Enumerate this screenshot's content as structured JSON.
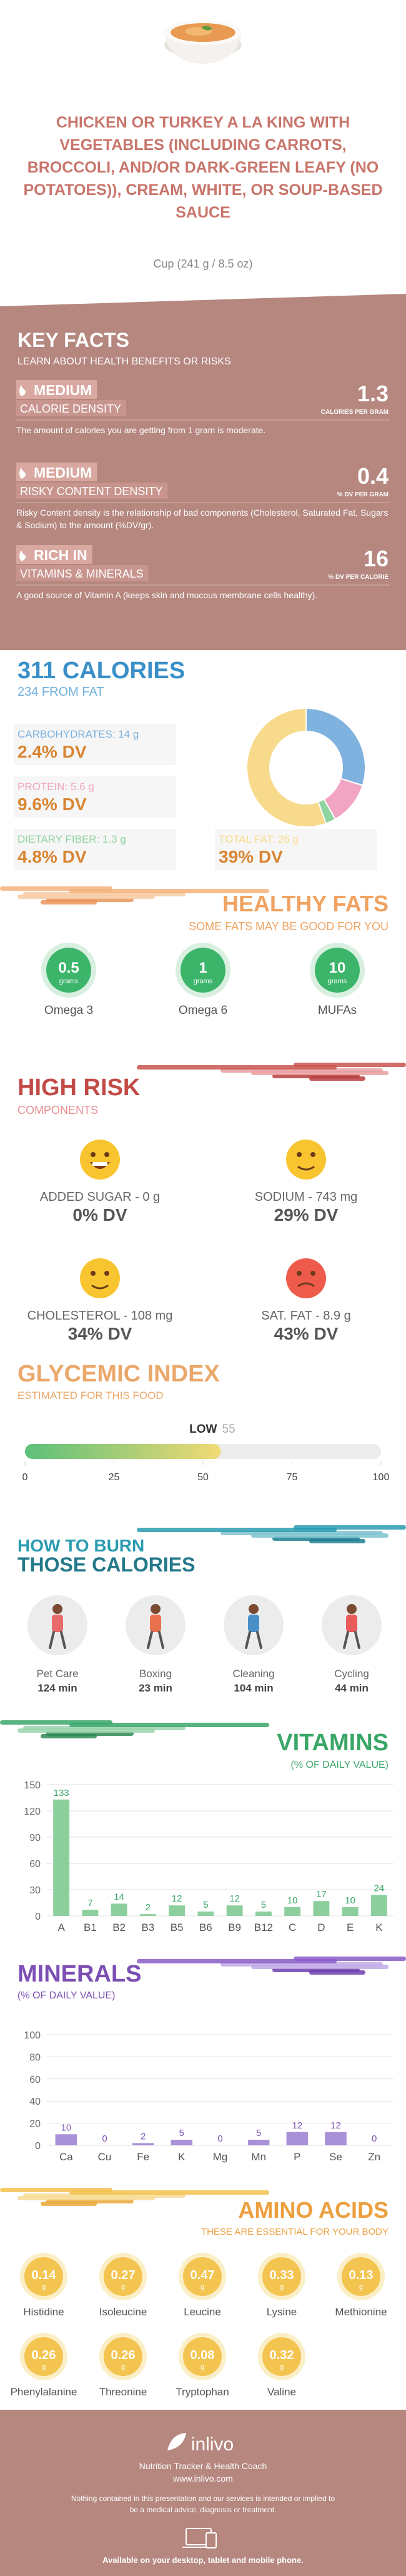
{
  "header": {
    "title": "CHICKEN OR TURKEY A LA KING WITH VEGETABLES (INCLUDING CARROTS, BROCCOLI, AND/OR DARK-GREEN LEAFY (NO POTATOES)), CREAM, WHITE, OR SOUP-BASED SAUCE",
    "serving": "Cup (241 g / 8.5 oz)"
  },
  "key_facts": {
    "title": "KEY FACTS",
    "subtitle": "LEARN ABOUT HEALTH BENEFITS OR RISKS",
    "items": [
      {
        "level": "MEDIUM",
        "label": "CALORIE DENSITY",
        "value": 1.3,
        "unit": "CALORIES PER GRAM",
        "description": "The amount of calories you are getting from 1 gram is moderate."
      },
      {
        "level": "MEDIUM",
        "label": "RISKY CONTENT DENSITY",
        "value": 0.4,
        "unit": "% DV PER GRAM",
        "description": "Risky Content density is the relationship of bad components (Cholesterol, Saturated Fat, Sugars & Sodium) to the amount (%DV/gr)."
      },
      {
        "level": "RICH IN",
        "label": "VITAMINS & MINERALS",
        "value": 16,
        "unit": "% DV PER CALORIE",
        "description": "A good source of Vitamin A (keeps skin and mucous membrane cells healthy)."
      }
    ]
  },
  "calories": {
    "title": "311 CALORIES",
    "subtitle": "234 FROM FAT",
    "nutrients": [
      {
        "label": "CARBOHYDRATES: 14 g",
        "value": 14,
        "dv": "2.4% DV",
        "color": "#7fb2de"
      },
      {
        "label": "PROTEIN: 5.6 g",
        "value": 5.6,
        "dv": "9.6% DV",
        "color": "#f2a5c3"
      },
      {
        "label": "DIETARY FIBER: 1.3 g",
        "value": 1.3,
        "dv": "4.8% DV",
        "color": "#8fd3a0"
      },
      {
        "label": "TOTAL FAT: 26 g",
        "value": 26,
        "dv": "39% DV",
        "color": "#f8da8c"
      }
    ]
  },
  "healthy_fats": {
    "title": "HEALTHY FATS",
    "subtitle": "SOME FATS MAY BE GOOD FOR YOU",
    "items": [
      {
        "name": "Omega 3",
        "value": 0.5,
        "unit": "grams"
      },
      {
        "name": "Omega 6",
        "value": 1,
        "unit": "grams"
      },
      {
        "name": "MUFAs",
        "value": 10,
        "unit": "grams"
      }
    ]
  },
  "high_risk": {
    "title": "HIGH RISK",
    "subtitle": "COMPONENTS",
    "items": [
      {
        "label": "ADDED SUGAR - 0 g",
        "dv": "0% DV",
        "mood": "happy"
      },
      {
        "label": "SODIUM - 743 mg",
        "dv": "29% DV",
        "mood": "smile"
      },
      {
        "label": "CHOLESTEROL - 108 mg",
        "dv": "34% DV",
        "mood": "smile"
      },
      {
        "label": "SAT. FAT - 8.9 g",
        "dv": "43% DV",
        "mood": "sad"
      }
    ]
  },
  "glycemic_index": {
    "title": "GLYCEMIC INDEX",
    "subtitle": "ESTIMATED FOR THIS FOOD",
    "level": "LOW",
    "value": 55,
    "xlim": [
      0,
      100
    ],
    "xticks": [
      0,
      25,
      50,
      75,
      100
    ]
  },
  "burn": {
    "title": "HOW TO BURN",
    "subtitle": "THOSE CALORIES",
    "activities": [
      {
        "name": "Pet Care",
        "time": "124 min"
      },
      {
        "name": "Boxing",
        "time": "23 min"
      },
      {
        "name": "Cleaning",
        "time": "104 min"
      },
      {
        "name": "Cycling",
        "time": "44 min"
      }
    ]
  },
  "vitamins": {
    "type": "bar",
    "title": "VITAMINS",
    "subtitle": "(% OF DAILY VALUE)",
    "categories": [
      "A",
      "B1",
      "B2",
      "B3",
      "B5",
      "B6",
      "B9",
      "B12",
      "C",
      "D",
      "E",
      "K"
    ],
    "values": [
      133,
      7,
      14,
      2,
      12,
      5,
      12,
      5,
      10,
      17,
      10,
      24
    ],
    "ylim": [
      0,
      150
    ],
    "yticks": [
      0,
      30,
      60,
      90,
      120,
      150
    ],
    "color": "#8ccf9d",
    "label_color": "#3aa668"
  },
  "minerals": {
    "type": "bar",
    "title": "MINERALS",
    "subtitle": "(% OF DAILY VALUE)",
    "categories": [
      "Ca",
      "Cu",
      "Fe",
      "K",
      "Mg",
      "Mn",
      "P",
      "Se",
      "Zn"
    ],
    "values": [
      10,
      0,
      2,
      5,
      0,
      5,
      12,
      12,
      0
    ],
    "ylim": [
      0,
      100
    ],
    "yticks": [
      0,
      20,
      40,
      60,
      80,
      100
    ],
    "color": "#a991d8",
    "label_color": "#7b55b5"
  },
  "amino_acids": {
    "title": "AMINO ACIDS",
    "subtitle": "THESE ARE ESSENTIAL FOR YOUR BODY",
    "items": [
      {
        "name": "Histidine",
        "value": 0.14,
        "unit": "g"
      },
      {
        "name": "Isoleucine",
        "value": 0.27,
        "unit": "g"
      },
      {
        "name": "Leucine",
        "value": 0.47,
        "unit": "g"
      },
      {
        "name": "Lysine",
        "value": 0.33,
        "unit": "g"
      },
      {
        "name": "Methionine",
        "value": 0.13,
        "unit": "g"
      },
      {
        "name": "Phenylalanine",
        "value": 0.26,
        "unit": "g"
      },
      {
        "name": "Threonine",
        "value": 0.26,
        "unit": "g"
      },
      {
        "name": "Tryptophan",
        "value": 0.08,
        "unit": "g"
      },
      {
        "name": "Valine",
        "value": 0.32,
        "unit": "g"
      }
    ]
  },
  "footer": {
    "brand": "inlivo",
    "tagline": "Nutrition Tracker & Health Coach",
    "url": "www.inlivo.com",
    "disclaimer": "Nothing contained in this presentation and our services is intended or implied to be a medical advice, diagnosis or treatment.",
    "availability": "Available on your desktop, tablet and mobile phone."
  }
}
